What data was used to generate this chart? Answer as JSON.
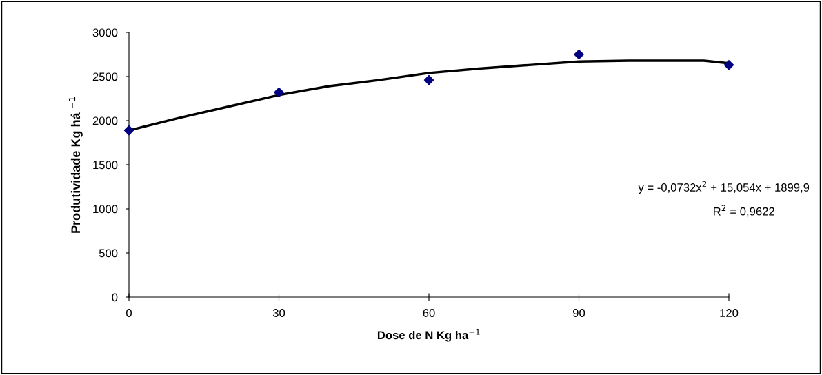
{
  "chart_data": {
    "type": "scatter",
    "xlabel": "Dose de N Kg ha$^{−1}$",
    "ylabel": "Produtividade Kg há $^{−1}$",
    "x": [
      0,
      30,
      60,
      90,
      120
    ],
    "series": [
      {
        "color": "#000080",
        "marker": "diamond",
        "values": [
          1890,
          2320,
          2460,
          2750,
          2630
        ]
      },
      {
        "type": "line",
        "color": "#000000",
        "marker": "none",
        "line_style": "solid",
        "x": [
          0,
          10,
          20,
          30,
          40,
          50,
          60,
          70,
          80,
          90,
          100,
          110,
          115,
          120
        ],
        "values": [
          1890,
          2030,
          2160,
          2290,
          2390,
          2460,
          2540,
          2590,
          2630,
          2670,
          2680,
          2680,
          2680,
          2650
        ]
      }
    ],
    "annotations": [
      "y = -0,0732x$^{2}$ + 15,054x + 1899,9",
      "R$^{2}$ = 0,9622"
    ],
    "xlim": [
      0,
      120
    ],
    "xticks": [
      0,
      30,
      60,
      90,
      120
    ],
    "ylim": [
      0,
      3000
    ],
    "yticks": [
      0,
      500,
      1000,
      1500,
      2000,
      2500,
      3000
    ],
    "grid": false,
    "legend": false
  }
}
